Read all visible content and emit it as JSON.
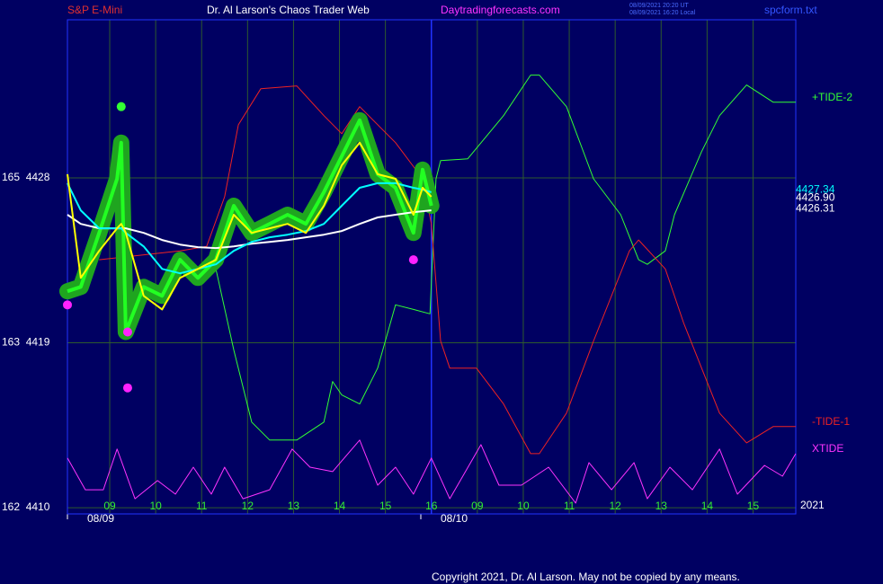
{
  "chart_data": {
    "type": "line",
    "title": "Dr. Al Larson's Chaos Trader Web",
    "instrument": "S&P E-Mini",
    "site": "Daytradingforecasts.com",
    "timestamps": [
      "08/09/2021 20:20 UT",
      "08/09/2021 16:20 Local"
    ],
    "file": "spcform.txt",
    "year": "2021",
    "copyright": "Copyright 2021, Dr. Al Larson. May not be copied by any means.",
    "xlim": [
      -0.92,
      14.93
    ],
    "ylim": [
      4409.66,
      4436.63
    ],
    "yticks": [
      {
        "value": 4428,
        "label": "165  4428"
      },
      {
        "value": 4419,
        "label": "163  4419"
      },
      {
        "value": 4410,
        "label": "162  4410"
      }
    ],
    "xticks": [
      {
        "value": 0,
        "label": "09"
      },
      {
        "value": 1,
        "label": "10"
      },
      {
        "value": 2,
        "label": "11"
      },
      {
        "value": 3,
        "label": "12"
      },
      {
        "value": 4,
        "label": "13"
      },
      {
        "value": 5,
        "label": "14"
      },
      {
        "value": 6,
        "label": "15"
      },
      {
        "value": 7,
        "label": "16"
      },
      {
        "value": 8,
        "label": "09"
      },
      {
        "value": 9,
        "label": "10"
      },
      {
        "value": 10,
        "label": "11"
      },
      {
        "value": 11,
        "label": "12"
      },
      {
        "value": 12,
        "label": "13"
      },
      {
        "value": 13,
        "label": "14"
      },
      {
        "value": 14,
        "label": "15"
      }
    ],
    "date_labels": [
      {
        "value": -0.92,
        "label": "08/09"
      },
      {
        "value": 6.77,
        "label": "08/10"
      }
    ],
    "divider_x": 7,
    "grid": true,
    "x": [
      -0.92,
      -0.63,
      -0.23,
      0.16,
      0.25,
      0.35,
      0.74,
      1.14,
      1.53,
      1.92,
      2.31,
      2.7,
      3.09,
      3.48,
      3.87,
      4.27,
      4.66,
      5.05,
      5.44,
      5.83,
      6.22,
      6.61,
      6.81,
      7.0
    ],
    "series": [
      {
        "color": "#22ff22",
        "glow_color": "#1fa51f",
        "values": [
          4421.81,
          4422.05,
          4425.0,
          4427.95,
          4429.92,
          4419.59,
          4422.05,
          4421.56,
          4423.53,
          4422.54,
          4423.53,
          4426.48,
          4425.0,
          4425.49,
          4425.99,
          4425.49,
          4427.22,
          4429.18,
          4431.15,
          4428.2,
          4427.46,
          4425.0,
          4428.45,
          4426.48
        ]
      },
      {
        "color": "#ffffff",
        "values": [
          4425.99,
          4425.49,
          4425.25,
          4425.25,
          4425.25,
          4425.25,
          4425.0,
          4424.61,
          4424.36,
          4424.22,
          4424.17,
          4424.26,
          4424.41,
          4424.51,
          4424.61,
          4424.76,
          4424.9,
          4425.1,
          4425.49,
          4425.84,
          4425.99,
          4426.13,
          4426.18,
          4426.23
        ]
      },
      {
        "color": "#00ffff",
        "values": [
          4427.71,
          4426.23,
          4425.25,
          4425.25,
          4425.25,
          4425.0,
          4424.26,
          4423.03,
          4422.79,
          4423.03,
          4423.28,
          4424.02,
          4424.51,
          4424.76,
          4424.9,
          4425.1,
          4425.49,
          4426.48,
          4427.46,
          4427.71,
          4427.71,
          4427.46,
          4427.36,
          4427.22
        ]
      },
      {
        "color": "#ffff00",
        "values": [
          4428.2,
          4422.54,
          4424.02,
          4425.25,
          4425.49,
          4425.0,
          4421.56,
          4420.82,
          4422.54,
          4423.03,
          4423.53,
          4425.99,
          4425.0,
          4425.25,
          4425.49,
          4425.0,
          4426.48,
          4428.69,
          4429.92,
          4428.2,
          4427.95,
          4425.99,
          4427.46,
          4426.97
        ]
      },
      {
        "name": "+TIDE-2",
        "color": "#33ff33",
        "x": [
          2.31,
          2.7,
          3.09,
          3.48,
          4.07,
          4.66,
          4.85,
          5.05,
          5.44,
          5.83,
          6.22,
          6.61,
          6.97,
          7.1,
          7.2,
          7.79,
          8.57,
          9.16,
          9.35,
          9.94,
          10.53,
          11.12,
          11.51,
          11.7,
          12.09,
          12.29,
          12.88,
          13.27,
          13.86,
          14.44,
          14.93
        ],
        "values": [
          4423.03,
          4418.61,
          4414.67,
          4413.69,
          4413.69,
          4414.67,
          4416.89,
          4416.15,
          4415.66,
          4417.62,
          4421.07,
          4420.82,
          4420.58,
          4427.95,
          4428.94,
          4429.04,
          4431.4,
          4433.61,
          4433.61,
          4431.89,
          4427.95,
          4425.99,
          4423.53,
          4423.28,
          4424.02,
          4425.99,
          4429.43,
          4431.4,
          4433.07,
          4432.13,
          4432.13
        ]
      },
      {
        "name": "-TIDE-1",
        "color": "#ee2222",
        "x": [
          -0.23,
          1.53,
          2.11,
          2.5,
          2.8,
          3.29,
          4.07,
          4.66,
          5.05,
          5.44,
          6.22,
          6.81,
          7.0,
          7.2,
          7.4,
          7.98,
          8.57,
          9.16,
          9.35,
          9.94,
          10.53,
          11.31,
          11.51,
          12.09,
          12.49,
          13.27,
          13.86,
          14.44,
          14.93
        ],
        "values": [
          4423.53,
          4424.02,
          4424.26,
          4426.97,
          4430.9,
          4432.87,
          4433.02,
          4431.4,
          4430.41,
          4431.89,
          4429.92,
          4427.95,
          4425.49,
          4419.1,
          4417.62,
          4417.62,
          4415.66,
          4412.95,
          4412.95,
          4415.16,
          4419.1,
          4424.02,
          4424.61,
          4423.03,
          4420.08,
          4415.16,
          4413.54,
          4414.43,
          4414.43
        ]
      },
      {
        "name": "XTIDE",
        "color": "#ff33ff",
        "x": [
          -0.92,
          -0.53,
          -0.14,
          0.16,
          0.55,
          1.04,
          1.43,
          1.82,
          2.21,
          2.5,
          2.9,
          3.48,
          3.97,
          4.36,
          4.85,
          5.44,
          5.83,
          6.22,
          6.61,
          7.0,
          7.4,
          8.08,
          8.47,
          8.96,
          9.55,
          10.14,
          10.43,
          10.92,
          11.41,
          11.7,
          12.19,
          12.68,
          13.27,
          13.66,
          14.25,
          14.64,
          14.93
        ],
        "values": [
          4412.71,
          4410.98,
          4410.98,
          4413.2,
          4410.49,
          4411.48,
          4410.74,
          4412.21,
          4410.74,
          4412.21,
          4410.49,
          4410.98,
          4413.2,
          4412.21,
          4411.97,
          4413.69,
          4411.23,
          4412.21,
          4410.74,
          4412.71,
          4410.49,
          4413.44,
          4411.23,
          4411.23,
          4412.21,
          4410.25,
          4412.46,
          4410.98,
          4412.46,
          4410.49,
          4412.21,
          4410.98,
          4413.2,
          4410.74,
          4412.31,
          4411.72,
          4412.95
        ]
      }
    ],
    "points": [
      {
        "color": "#ff22ff",
        "x": [
          -0.92,
          0.39,
          0.39,
          6.61
        ],
        "values": [
          4421.07,
          4419.59,
          4416.54,
          4423.53
        ]
      },
      {
        "color": "#33ff33",
        "x": [
          0.25
        ],
        "values": [
          4431.89
        ]
      }
    ],
    "price_labels": [
      {
        "value": 4427.34,
        "label": "4427.34",
        "color": "#00ffff"
      },
      {
        "value": 4426.9,
        "label": "4426.90",
        "color": "#ffffff"
      },
      {
        "value": 4426.31,
        "label": "4426.31",
        "color": "#ffffff"
      }
    ]
  }
}
